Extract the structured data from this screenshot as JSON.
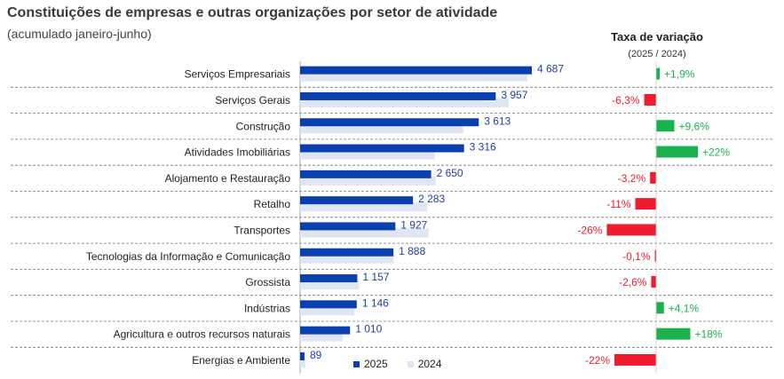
{
  "header": {
    "title": "Constituições de empresas e outras organizações por setor de atividade",
    "subtitle": "(acumulado janeiro-junho)",
    "var_title": "Taxa de variação",
    "var_subtitle": "(2025 / 2024)"
  },
  "colors": {
    "series_2025": "#0a3fb0",
    "series_2024": "#dfe6f1",
    "positive": "#1bb14c",
    "negative": "#ee1c2e",
    "label_blue": "#1f3f9f"
  },
  "chart_data": {
    "type": "bar",
    "orientation": "horizontal",
    "title": "Constituições de empresas e outras organizações por setor de atividade",
    "subtitle": "(acumulado janeiro-junho)",
    "categories": [
      "Serviços Empresariais",
      "Serviços Gerais",
      "Construção",
      "Atividades Imobiliárias",
      "Alojamento e Restauração",
      "Retalho",
      "Transportes",
      "Tecnologias da Informação e Comunicação",
      "Grossista",
      "Indústrias",
      "Agricultura e outros recursos naturais",
      "Energias e Ambiente"
    ],
    "series": [
      {
        "name": "2025",
        "values": [
          4687,
          3957,
          3613,
          3316,
          2650,
          2283,
          1927,
          1888,
          1157,
          1146,
          1010,
          89
        ]
      },
      {
        "name": "2024",
        "values": [
          4600,
          4220,
          3300,
          2720,
          2740,
          2570,
          2600,
          1890,
          1190,
          1100,
          860,
          114
        ]
      }
    ],
    "value_labels": [
      "4 687",
      "3 957",
      "3 613",
      "3 316",
      "2 650",
      "2 283",
      "1 927",
      "1 888",
      "1 157",
      "1 146",
      "1 010",
      "89"
    ],
    "variation": {
      "title": "Taxa de variação",
      "subtitle": "(2025 / 2024)",
      "values": [
        1.9,
        -6.3,
        9.6,
        22,
        -3.2,
        -11,
        -26,
        -0.1,
        -2.6,
        4.1,
        18,
        -22
      ],
      "labels": [
        "+1,9%",
        "-6,3%",
        "+9,6%",
        "+22%",
        "-3,2%",
        "-11%",
        "-26%",
        "-0,1%",
        "-2,6%",
        "+4,1%",
        "+18%",
        "-22%"
      ]
    },
    "legend": [
      "2025",
      "2024"
    ],
    "legend_position": "bottom",
    "grid": false
  }
}
